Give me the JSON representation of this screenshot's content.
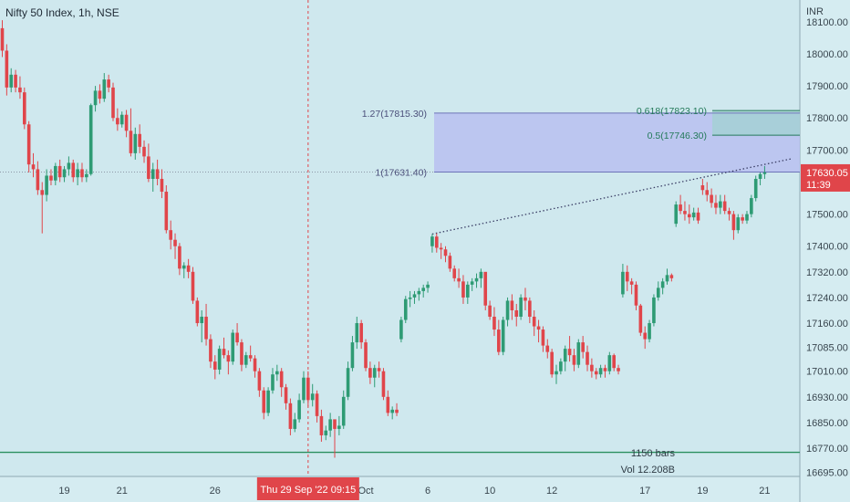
{
  "chart_data": {
    "type": "candlestick",
    "title": "Nifty 50 Index, 1h, NSE",
    "currency": "INR",
    "y_ticks": [
      18100,
      18000,
      17900,
      17800,
      17700,
      17500,
      17400,
      17320,
      17240,
      17160,
      17085,
      17010,
      16930,
      16850,
      16770,
      16695
    ],
    "y_tick_labels": [
      "18100.00",
      "18000.00",
      "17900.00",
      "17800.00",
      "17700.00",
      "17500.00",
      "17400.00",
      "17320.00",
      "17240.00",
      "17160.00",
      "17085.00",
      "17010.00",
      "16930.00",
      "16850.00",
      "16770.00",
      "16695.00"
    ],
    "x_ticks": [
      {
        "label": "19",
        "bar": 14
      },
      {
        "label": "21",
        "bar": 27
      },
      {
        "label": "26",
        "bar": 48
      },
      {
        "label": "Oct",
        "bar": 82
      },
      {
        "label": "6",
        "bar": 96
      },
      {
        "label": "10",
        "bar": 110
      },
      {
        "label": "12",
        "bar": 124
      },
      {
        "label": "17",
        "bar": 145
      },
      {
        "label": "19",
        "bar": 158
      },
      {
        "label": "21",
        "bar": 172
      }
    ],
    "crosshair": {
      "label": "Thu 29 Sep '22   09:15",
      "bar": 69
    },
    "last_price": {
      "value": 17630.05,
      "label": "17630.05",
      "countdown": "11:39"
    },
    "fib_levels": [
      {
        "label": "1.27(17815.30)",
        "value": 17815.3
      },
      {
        "label": "1(17631.40)",
        "value": 17631.4
      }
    ],
    "fib_levels_right": [
      {
        "label": "0.618(17823.10)",
        "value": 17823.1
      },
      {
        "label": "0.5(17746.30)",
        "value": 17746.3
      }
    ],
    "support_level": 16757,
    "annotations": {
      "bars": "1150 bars",
      "volume": "Vol 12.208B"
    },
    "colors": {
      "up": "#2e9b74",
      "down": "#e0454a",
      "box": "#b9bff0",
      "support": "#2a8f5e"
    },
    "candles": [
      [
        18080,
        18105,
        17990,
        18010
      ],
      [
        18010,
        18030,
        17870,
        17895
      ],
      [
        17895,
        17955,
        17880,
        17935
      ],
      [
        17935,
        17950,
        17880,
        17895
      ],
      [
        17895,
        17930,
        17860,
        17880
      ],
      [
        17880,
        17895,
        17765,
        17780
      ],
      [
        17780,
        17790,
        17630,
        17655
      ],
      [
        17655,
        17690,
        17615,
        17640
      ],
      [
        17640,
        17665,
        17560,
        17575
      ],
      [
        17575,
        17600,
        17440,
        17560
      ],
      [
        17560,
        17640,
        17540,
        17620
      ],
      [
        17620,
        17640,
        17590,
        17605
      ],
      [
        17605,
        17660,
        17590,
        17650
      ],
      [
        17650,
        17670,
        17600,
        17615
      ],
      [
        17615,
        17650,
        17600,
        17640
      ],
      [
        17640,
        17680,
        17620,
        17660
      ],
      [
        17660,
        17670,
        17600,
        17615
      ],
      [
        17615,
        17660,
        17590,
        17640
      ],
      [
        17640,
        17660,
        17600,
        17615
      ],
      [
        17615,
        17640,
        17600,
        17625
      ],
      [
        17625,
        17845,
        17620,
        17840
      ],
      [
        17840,
        17900,
        17820,
        17885
      ],
      [
        17885,
        17905,
        17845,
        17860
      ],
      [
        17860,
        17940,
        17850,
        17920
      ],
      [
        17920,
        17935,
        17880,
        17895
      ],
      [
        17895,
        17910,
        17790,
        17800
      ],
      [
        17800,
        17830,
        17760,
        17780
      ],
      [
        17780,
        17820,
        17770,
        17810
      ],
      [
        17810,
        17825,
        17740,
        17760
      ],
      [
        17760,
        17830,
        17680,
        17690
      ],
      [
        17690,
        17770,
        17670,
        17750
      ],
      [
        17750,
        17780,
        17690,
        17710
      ],
      [
        17710,
        17730,
        17660,
        17680
      ],
      [
        17680,
        17720,
        17600,
        17610
      ],
      [
        17610,
        17660,
        17570,
        17640
      ],
      [
        17640,
        17670,
        17590,
        17610
      ],
      [
        17610,
        17640,
        17550,
        17570
      ],
      [
        17570,
        17590,
        17440,
        17450
      ],
      [
        17450,
        17480,
        17390,
        17420
      ],
      [
        17420,
        17440,
        17360,
        17400
      ],
      [
        17400,
        17410,
        17310,
        17330
      ],
      [
        17330,
        17350,
        17300,
        17340
      ],
      [
        17340,
        17360,
        17300,
        17320
      ],
      [
        17320,
        17335,
        17220,
        17230
      ],
      [
        17230,
        17240,
        17150,
        17160
      ],
      [
        17160,
        17200,
        17100,
        17180
      ],
      [
        17180,
        17220,
        17090,
        17110
      ],
      [
        17110,
        17125,
        17020,
        17040
      ],
      [
        17040,
        17060,
        16985,
        17015
      ],
      [
        17015,
        17090,
        17000,
        17080
      ],
      [
        17080,
        17115,
        17050,
        17060
      ],
      [
        17060,
        17075,
        17000,
        17040
      ],
      [
        17040,
        17140,
        17030,
        17130
      ],
      [
        17130,
        17160,
        17090,
        17100
      ],
      [
        17100,
        17110,
        17010,
        17030
      ],
      [
        17030,
        17070,
        17020,
        17060
      ],
      [
        17060,
        17090,
        17040,
        17050
      ],
      [
        17050,
        17060,
        16990,
        17010
      ],
      [
        17010,
        17020,
        16930,
        16950
      ],
      [
        16950,
        16960,
        16860,
        16880
      ],
      [
        16880,
        16960,
        16870,
        16950
      ],
      [
        16950,
        17020,
        16940,
        17000
      ],
      [
        17000,
        17030,
        16980,
        17010
      ],
      [
        17010,
        17020,
        16930,
        16960
      ],
      [
        16960,
        16970,
        16890,
        16910
      ],
      [
        16910,
        16925,
        16810,
        16830
      ],
      [
        16830,
        16880,
        16820,
        16860
      ],
      [
        16860,
        16940,
        16850,
        16920
      ],
      [
        16920,
        17010,
        16910,
        16990
      ],
      [
        16990,
        17010,
        16900,
        16920
      ],
      [
        16920,
        16970,
        16900,
        16940
      ],
      [
        16940,
        16950,
        16850,
        16870
      ],
      [
        16870,
        16890,
        16790,
        16810
      ],
      [
        16810,
        16840,
        16795,
        16825
      ],
      [
        16825,
        16880,
        16805,
        16860
      ],
      [
        16860,
        16850,
        16740,
        16830
      ],
      [
        16830,
        16870,
        16810,
        16840
      ],
      [
        16840,
        16950,
        16830,
        16930
      ],
      [
        16930,
        17040,
        16920,
        17020
      ],
      [
        17020,
        17120,
        17010,
        17100
      ],
      [
        17100,
        17180,
        17080,
        17160
      ],
      [
        17160,
        17170,
        17080,
        17100
      ],
      [
        17100,
        17110,
        17010,
        17020
      ],
      [
        17020,
        17040,
        16970,
        16990
      ],
      [
        16990,
        17030,
        16960,
        17020
      ],
      [
        17020,
        17040,
        16990,
        17010
      ],
      [
        17010,
        17020,
        16920,
        16930
      ],
      [
        16930,
        16950,
        16870,
        16880
      ],
      [
        16880,
        16900,
        16860,
        16890
      ],
      [
        16890,
        16910,
        16870,
        16880
      ],
      [
        17110,
        17180,
        17100,
        17170
      ],
      [
        17170,
        17245,
        17160,
        17235
      ],
      [
        17235,
        17260,
        17210,
        17240
      ],
      [
        17240,
        17260,
        17220,
        17250
      ],
      [
        17250,
        17270,
        17230,
        17260
      ],
      [
        17260,
        17280,
        17240,
        17270
      ],
      [
        17270,
        17290,
        17255,
        17280
      ],
      [
        17400,
        17438,
        17380,
        17430
      ],
      [
        17430,
        17440,
        17380,
        17395
      ],
      [
        17395,
        17410,
        17360,
        17390
      ],
      [
        17390,
        17400,
        17350,
        17370
      ],
      [
        17370,
        17380,
        17320,
        17330
      ],
      [
        17330,
        17340,
        17290,
        17300
      ],
      [
        17300,
        17330,
        17270,
        17290
      ],
      [
        17290,
        17310,
        17220,
        17240
      ],
      [
        17240,
        17290,
        17220,
        17280
      ],
      [
        17280,
        17300,
        17260,
        17290
      ],
      [
        17290,
        17315,
        17270,
        17300
      ],
      [
        17300,
        17330,
        17270,
        17320
      ],
      [
        17320,
        17310,
        17200,
        17215
      ],
      [
        17215,
        17230,
        17170,
        17180
      ],
      [
        17180,
        17210,
        17120,
        17140
      ],
      [
        17140,
        17170,
        17060,
        17070
      ],
      [
        17070,
        17180,
        17060,
        17170
      ],
      [
        17170,
        17240,
        17150,
        17230
      ],
      [
        17230,
        17250,
        17170,
        17200
      ],
      [
        17200,
        17220,
        17150,
        17180
      ],
      [
        17180,
        17250,
        17170,
        17240
      ],
      [
        17240,
        17270,
        17200,
        17230
      ],
      [
        17230,
        17240,
        17160,
        17180
      ],
      [
        17180,
        17200,
        17120,
        17150
      ],
      [
        17150,
        17170,
        17100,
        17140
      ],
      [
        17140,
        17150,
        17070,
        17090
      ],
      [
        17090,
        17110,
        17050,
        17070
      ],
      [
        17070,
        17080,
        16990,
        17000
      ],
      [
        17000,
        17030,
        16970,
        17010
      ],
      [
        17010,
        17050,
        17000,
        17040
      ],
      [
        17040,
        17090,
        17010,
        17080
      ],
      [
        17080,
        17120,
        17040,
        17060
      ],
      [
        17060,
        17080,
        17010,
        17030
      ],
      [
        17030,
        17110,
        17020,
        17100
      ],
      [
        17100,
        17120,
        17050,
        17070
      ],
      [
        17070,
        17090,
        17010,
        17030
      ],
      [
        17030,
        17050,
        16990,
        17010
      ],
      [
        17010,
        17020,
        16985,
        17000
      ],
      [
        17000,
        17030,
        16990,
        17020
      ],
      [
        17020,
        17030,
        16990,
        17010
      ],
      [
        17010,
        17070,
        17000,
        17060
      ],
      [
        17060,
        17065,
        17010,
        17020
      ],
      [
        17020,
        17030,
        17000,
        17010
      ],
      [
        17250,
        17345,
        17240,
        17320
      ],
      [
        17320,
        17340,
        17260,
        17290
      ],
      [
        17290,
        17300,
        17250,
        17280
      ],
      [
        17280,
        17290,
        17200,
        17215
      ],
      [
        17215,
        17220,
        17120,
        17130
      ],
      [
        17130,
        17150,
        17080,
        17110
      ],
      [
        17110,
        17170,
        17100,
        17160
      ],
      [
        17160,
        17250,
        17150,
        17240
      ],
      [
        17240,
        17290,
        17230,
        17270
      ],
      [
        17270,
        17300,
        17250,
        17290
      ],
      [
        17290,
        17330,
        17280,
        17310
      ],
      [
        17310,
        17315,
        17290,
        17300
      ],
      [
        17470,
        17540,
        17460,
        17530
      ],
      [
        17530,
        17560,
        17500,
        17510
      ],
      [
        17510,
        17540,
        17480,
        17500
      ],
      [
        17500,
        17530,
        17470,
        17490
      ],
      [
        17490,
        17520,
        17480,
        17505
      ],
      [
        17505,
        17520,
        17470,
        17480
      ],
      [
        17590,
        17610,
        17560,
        17575
      ],
      [
        17575,
        17600,
        17540,
        17560
      ],
      [
        17560,
        17580,
        17520,
        17535
      ],
      [
        17535,
        17560,
        17500,
        17520
      ],
      [
        17520,
        17560,
        17500,
        17540
      ],
      [
        17540,
        17560,
        17500,
        17510
      ],
      [
        17510,
        17520,
        17480,
        17500
      ],
      [
        17500,
        17510,
        17420,
        17450
      ],
      [
        17450,
        17500,
        17440,
        17490
      ],
      [
        17490,
        17500,
        17470,
        17480
      ],
      [
        17480,
        17510,
        17470,
        17500
      ],
      [
        17500,
        17560,
        17490,
        17550
      ],
      [
        17550,
        17620,
        17540,
        17610
      ],
      [
        17610,
        17630,
        17590,
        17625
      ],
      [
        17625,
        17650,
        17610,
        17630
      ]
    ]
  }
}
